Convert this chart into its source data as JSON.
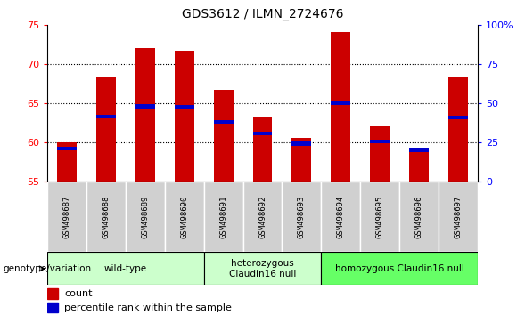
{
  "title": "GDS3612 / ILMN_2724676",
  "samples": [
    "GSM498687",
    "GSM498688",
    "GSM498689",
    "GSM498690",
    "GSM498691",
    "GSM498692",
    "GSM498693",
    "GSM498694",
    "GSM498695",
    "GSM498696",
    "GSM498697"
  ],
  "count_values": [
    60.0,
    68.3,
    72.1,
    71.7,
    66.7,
    63.2,
    60.5,
    74.1,
    62.0,
    59.3,
    68.3
  ],
  "percentile_values": [
    59.2,
    63.3,
    64.6,
    64.5,
    62.6,
    61.1,
    59.8,
    65.0,
    60.1,
    59.0,
    63.2
  ],
  "y_min": 55,
  "y_max": 75,
  "y_ticks": [
    55,
    60,
    65,
    70,
    75
  ],
  "right_y_labels": [
    "0",
    "25",
    "50",
    "75",
    "100%"
  ],
  "groups": [
    {
      "label": "wild-type",
      "start": 0,
      "end": 3,
      "color": "#ccffcc"
    },
    {
      "label": "heterozygous\nClaudin16 null",
      "start": 4,
      "end": 6,
      "color": "#ccffcc"
    },
    {
      "label": "homozygous Claudin16 null",
      "start": 7,
      "end": 10,
      "color": "#66ff66"
    }
  ],
  "bar_color": "#cc0000",
  "percentile_color": "#0000cc",
  "title_fontsize": 10,
  "tick_fontsize": 8,
  "bar_width": 0.5,
  "pct_bar_height": 0.5,
  "bg_color": "#f0f0f0",
  "sample_box_color": "#d0d0d0"
}
